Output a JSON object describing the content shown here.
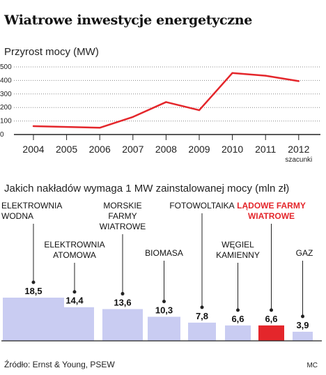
{
  "title": "Wiatrowe inwestycje energetyczne",
  "source": "Źródło: Ernst & Young, PSEW",
  "credit": "MC",
  "chart_data": [
    {
      "type": "line",
      "title": "Przyrost mocy (MW)",
      "x": [
        "2004",
        "2005",
        "2006",
        "2007",
        "2008",
        "2009",
        "2010",
        "2011",
        "2012"
      ],
      "x_note": "szacunki",
      "series": [
        {
          "values": [
            62,
            null,
            50,
            130,
            240,
            180,
            455,
            435,
            395
          ]
        }
      ],
      "yticks": [
        0,
        100,
        200,
        300,
        400,
        500
      ],
      "ylim": [
        0,
        500
      ],
      "grid": "dotted horizontal",
      "line_color": "#e4262b"
    },
    {
      "type": "bar",
      "title": "Jakich nakładów wymaga 1 MW zainstalowanej mocy (mln zł)",
      "categories": [
        "ELEKTROWNIA WODNA",
        "ELEKTROWNIA ATOMOWA",
        "MORSKIE FARMY WIATROWE",
        "BIOMASA",
        "FOTOWOLTAIKA",
        "WĘGIEL KAMIENNY",
        "LĄDOWE FARMY WIATROWE",
        "GAZ"
      ],
      "label_lines": [
        [
          "ELEKTROWNIA",
          "WODNA"
        ],
        [
          "ELEKTROWNIA",
          "ATOMOWA"
        ],
        [
          "MORSKIE",
          "FARMY",
          "WIATROWE"
        ],
        [
          "BIOMASA"
        ],
        [
          "FOTOWOLTAIKA"
        ],
        [
          "WĘGIEL",
          "KAMIENNY"
        ],
        [
          "LĄDOWE FARMY",
          "WIATROWE"
        ],
        [
          "GAZ"
        ]
      ],
      "values": [
        18.5,
        14.4,
        13.6,
        10.3,
        7.8,
        6.6,
        6.6,
        3.9
      ],
      "value_labels": [
        "18,5",
        "14,4",
        "13,6",
        "10,3",
        "7,8",
        "6,6",
        "6,6",
        "3,9"
      ],
      "highlight_index": 6,
      "bar_color": "#c9ccf2",
      "highlight_color": "#e4262b"
    }
  ]
}
